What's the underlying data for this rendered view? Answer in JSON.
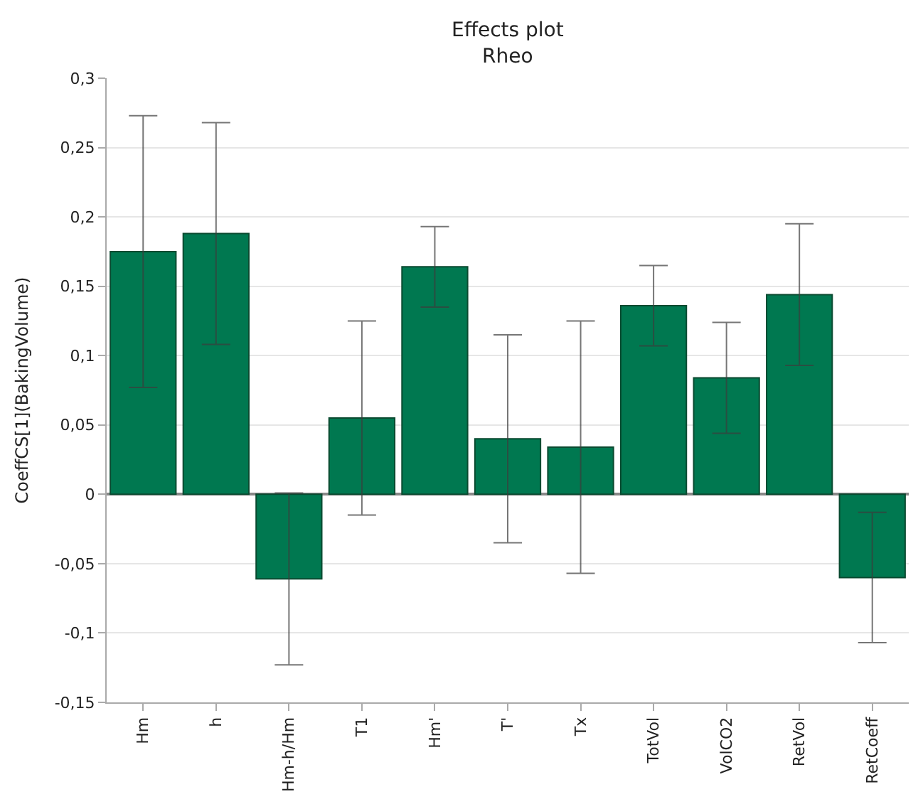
{
  "chart_data": {
    "type": "bar",
    "title": "Effects plot",
    "subtitle": "Rheo",
    "ylabel": "CoeffCS[1](BakingVolume)",
    "categories": [
      "Hm",
      "h",
      "Hm-h/Hm",
      "T1",
      "Hm'",
      "T'",
      "Tx",
      "TotVol",
      "VolCO2",
      "RetVol",
      "RetCoeff"
    ],
    "values": [
      0.175,
      0.188,
      -0.061,
      0.055,
      0.164,
      0.04,
      0.034,
      0.136,
      0.084,
      0.144,
      -0.06
    ],
    "errors": [
      0.098,
      0.08,
      0.062,
      0.07,
      0.029,
      0.075,
      0.091,
      0.029,
      0.04,
      0.051,
      0.047
    ],
    "color": "#007850",
    "ylim": [
      -0.15,
      0.3
    ],
    "yticks": [
      {
        "value": -0.15,
        "label": "-0,15"
      },
      {
        "value": -0.1,
        "label": "-0,1"
      },
      {
        "value": -0.05,
        "label": "-0,05"
      },
      {
        "value": 0,
        "label": "0"
      },
      {
        "value": 0.05,
        "label": "0,05"
      },
      {
        "value": 0.1,
        "label": "0,1"
      },
      {
        "value": 0.15,
        "label": "0,15"
      },
      {
        "value": 0.2,
        "label": "0,2"
      },
      {
        "value": 0.25,
        "label": "0,25"
      },
      {
        "value": 0.3,
        "label": "0,3"
      }
    ],
    "grid": "y"
  }
}
